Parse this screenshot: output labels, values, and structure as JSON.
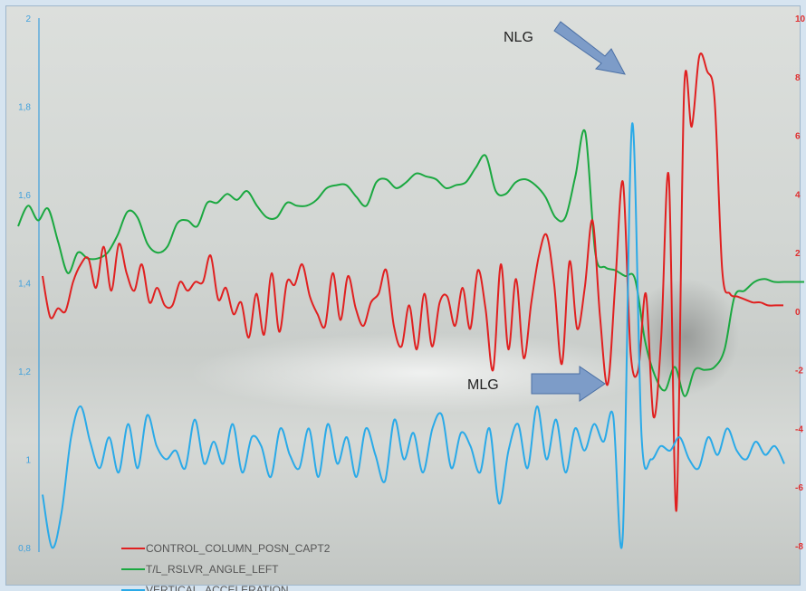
{
  "chart_data": {
    "type": "line",
    "title": "",
    "xlabel": "",
    "grid": false,
    "legend_position": "bottom-left",
    "y_left": {
      "ticks": [
        {
          "value": 2,
          "label": "2"
        },
        {
          "value": 1.8,
          "label": "1,8"
        },
        {
          "value": 1.6,
          "label": "1,6"
        },
        {
          "value": 1.4,
          "label": "1,4"
        },
        {
          "value": 1.2,
          "label": "1,2"
        },
        {
          "value": 1,
          "label": "1"
        },
        {
          "value": 0.8,
          "label": "0,8"
        }
      ],
      "ylim": [
        0.8,
        2
      ],
      "color": "#3fa0dc"
    },
    "y_right": {
      "ticks": [
        {
          "value": 10,
          "label": "10"
        },
        {
          "value": 8,
          "label": "8"
        },
        {
          "value": 6,
          "label": "6"
        },
        {
          "value": 4,
          "label": "4"
        },
        {
          "value": 2,
          "label": "2"
        },
        {
          "value": 0,
          "label": "0"
        },
        {
          "value": -2,
          "label": "-2"
        },
        {
          "value": -4,
          "label": "-4"
        },
        {
          "value": -6,
          "label": "-6"
        },
        {
          "value": -8,
          "label": "-8"
        }
      ],
      "ylim": [
        -8,
        10
      ],
      "color": "#e03030"
    },
    "series": [
      {
        "name": "CONTROL_COLUMN_POSN_CAPT2",
        "color": "#e02020",
        "axis": "right",
        "points": [
          [
            0,
            1.2
          ],
          [
            1,
            -0.2
          ],
          [
            2,
            0.1
          ],
          [
            3,
            0
          ],
          [
            4,
            1
          ],
          [
            5,
            1.6
          ],
          [
            6,
            1.8
          ],
          [
            7,
            0.8
          ],
          [
            8,
            2.2
          ],
          [
            9,
            0.7
          ],
          [
            10,
            2.3
          ],
          [
            11,
            1.3
          ],
          [
            12,
            0.7
          ],
          [
            13,
            1.6
          ],
          [
            14,
            0.3
          ],
          [
            15,
            0.8
          ],
          [
            16,
            0.2
          ],
          [
            17,
            0.2
          ],
          [
            18,
            1
          ],
          [
            19,
            0.7
          ],
          [
            20,
            1
          ],
          [
            21,
            1
          ],
          [
            22,
            1.9
          ],
          [
            23,
            0.4
          ],
          [
            24,
            0.8
          ],
          [
            25,
            -0.1
          ],
          [
            26,
            0.3
          ],
          [
            27,
            -0.9
          ],
          [
            28,
            0.6
          ],
          [
            29,
            -0.8
          ],
          [
            30,
            1.3
          ],
          [
            31,
            -0.7
          ],
          [
            32,
            1
          ],
          [
            33,
            0.9
          ],
          [
            34,
            1.6
          ],
          [
            35,
            0.5
          ],
          [
            36,
            -0.1
          ],
          [
            37,
            -0.5
          ],
          [
            38,
            1.3
          ],
          [
            39,
            -0.3
          ],
          [
            40,
            1.2
          ],
          [
            41,
            0.1
          ],
          [
            42,
            -0.5
          ],
          [
            43,
            0.3
          ],
          [
            44,
            0.6
          ],
          [
            45,
            1.4
          ],
          [
            46,
            -0.5
          ],
          [
            47,
            -1.2
          ],
          [
            48,
            0.2
          ],
          [
            49,
            -1.3
          ],
          [
            50,
            0.6
          ],
          [
            51,
            -1.2
          ],
          [
            52,
            0.3
          ],
          [
            53,
            0.5
          ],
          [
            54,
            -0.5
          ],
          [
            55,
            0.8
          ],
          [
            56,
            -0.6
          ],
          [
            57,
            1.4
          ],
          [
            58,
            0.1
          ],
          [
            59,
            -2
          ],
          [
            60,
            1.6
          ],
          [
            61,
            -1.3
          ],
          [
            62,
            1.1
          ],
          [
            63,
            -1.6
          ],
          [
            64,
            0.3
          ],
          [
            65,
            1.9
          ],
          [
            66,
            2.6
          ],
          [
            67,
            0.9
          ],
          [
            68,
            -1.8
          ],
          [
            69,
            1.7
          ],
          [
            70,
            -0.6
          ],
          [
            71,
            0.8
          ],
          [
            72,
            3.1
          ],
          [
            73,
            -0.2
          ],
          [
            74,
            -2.5
          ],
          [
            75,
            1
          ],
          [
            76,
            4.4
          ],
          [
            77,
            -1.4
          ],
          [
            78,
            -2
          ],
          [
            79,
            0.6
          ],
          [
            80,
            -3.6
          ],
          [
            81,
            -0.9
          ],
          [
            82,
            4.6
          ],
          [
            83,
            -6.8
          ],
          [
            84,
            7.5
          ],
          [
            85,
            6.3
          ],
          [
            86,
            8.7
          ],
          [
            87,
            8.2
          ],
          [
            88,
            7.2
          ],
          [
            89,
            1.4
          ],
          [
            90,
            0.6
          ],
          [
            91,
            0.5
          ],
          [
            92,
            0.4
          ],
          [
            93,
            0.3
          ],
          [
            94,
            0.3
          ],
          [
            95,
            0.2
          ],
          [
            96,
            0.2
          ],
          [
            97,
            0.2
          ]
        ]
      },
      {
        "name": "T/L_RSLVR_ANGLE_LEFT",
        "color": "#1aa840",
        "axis": "right",
        "points": [
          [
            0,
            2.9
          ],
          [
            1,
            3.6
          ],
          [
            2,
            3.1
          ],
          [
            3,
            3.5
          ],
          [
            4,
            2.4
          ],
          [
            5,
            1.3
          ],
          [
            6,
            2
          ],
          [
            7,
            1.8
          ],
          [
            8,
            1.8
          ],
          [
            9,
            2
          ],
          [
            10,
            2.6
          ],
          [
            11,
            3.4
          ],
          [
            12,
            3.2
          ],
          [
            13,
            2.3
          ],
          [
            14,
            2
          ],
          [
            15,
            2.2
          ],
          [
            16,
            3
          ],
          [
            17,
            3.1
          ],
          [
            18,
            2.9
          ],
          [
            19,
            3.7
          ],
          [
            20,
            3.7
          ],
          [
            21,
            4
          ],
          [
            22,
            3.8
          ],
          [
            23,
            4.1
          ],
          [
            24,
            3.6
          ],
          [
            25,
            3.2
          ],
          [
            26,
            3.2
          ],
          [
            27,
            3.7
          ],
          [
            28,
            3.6
          ],
          [
            29,
            3.6
          ],
          [
            30,
            3.8
          ],
          [
            31,
            4.2
          ],
          [
            32,
            4.3
          ],
          [
            33,
            4.3
          ],
          [
            34,
            3.9
          ],
          [
            35,
            3.6
          ],
          [
            36,
            4.4
          ],
          [
            37,
            4.5
          ],
          [
            38,
            4.2
          ],
          [
            39,
            4.4
          ],
          [
            40,
            4.7
          ],
          [
            41,
            4.6
          ],
          [
            42,
            4.5
          ],
          [
            43,
            4.2
          ],
          [
            44,
            4.3
          ],
          [
            45,
            4.4
          ],
          [
            46,
            4.9
          ],
          [
            47,
            5.3
          ],
          [
            48,
            4.1
          ],
          [
            49,
            4
          ],
          [
            50,
            4.4
          ],
          [
            51,
            4.5
          ],
          [
            52,
            4.3
          ],
          [
            53,
            3.9
          ],
          [
            54,
            3.2
          ],
          [
            55,
            3.2
          ],
          [
            56,
            4.6
          ],
          [
            57,
            6.1
          ],
          [
            58,
            2
          ],
          [
            59,
            1.5
          ],
          [
            60,
            1.4
          ],
          [
            61,
            1.2
          ],
          [
            62,
            1.1
          ],
          [
            63,
            -1
          ],
          [
            64,
            -2.2
          ],
          [
            65,
            -2.7
          ],
          [
            66,
            -1.9
          ],
          [
            67,
            -2.9
          ],
          [
            68,
            -2
          ],
          [
            69,
            -2
          ],
          [
            70,
            -1.9
          ],
          [
            71,
            -1.3
          ],
          [
            72,
            0.5
          ],
          [
            73,
            0.7
          ],
          [
            74,
            1
          ],
          [
            75,
            1.1
          ],
          [
            76,
            1
          ],
          [
            77,
            1
          ],
          [
            78,
            1
          ],
          [
            79,
            1
          ]
        ]
      },
      {
        "name": "VERTICAL_ACCELERATION",
        "color": "#2aaae8",
        "axis": "left",
        "points": [
          [
            0,
            0.92
          ],
          [
            1,
            0.8
          ],
          [
            2,
            0.88
          ],
          [
            3,
            1.05
          ],
          [
            4,
            1.12
          ],
          [
            5,
            1.04
          ],
          [
            6,
            0.98
          ],
          [
            7,
            1.05
          ],
          [
            8,
            0.97
          ],
          [
            9,
            1.08
          ],
          [
            10,
            0.98
          ],
          [
            11,
            1.1
          ],
          [
            12,
            1.03
          ],
          [
            13,
            1
          ],
          [
            14,
            1.02
          ],
          [
            15,
            0.98
          ],
          [
            16,
            1.09
          ],
          [
            17,
            0.99
          ],
          [
            18,
            1.04
          ],
          [
            19,
            0.99
          ],
          [
            20,
            1.08
          ],
          [
            21,
            0.97
          ],
          [
            22,
            1.05
          ],
          [
            23,
            1.03
          ],
          [
            24,
            0.96
          ],
          [
            25,
            1.07
          ],
          [
            26,
            1.01
          ],
          [
            27,
            0.98
          ],
          [
            28,
            1.07
          ],
          [
            29,
            0.96
          ],
          [
            30,
            1.08
          ],
          [
            31,
            0.99
          ],
          [
            32,
            1.05
          ],
          [
            33,
            0.96
          ],
          [
            34,
            1.07
          ],
          [
            35,
            1.01
          ],
          [
            36,
            0.95
          ],
          [
            37,
            1.09
          ],
          [
            38,
            1
          ],
          [
            39,
            1.06
          ],
          [
            40,
            0.97
          ],
          [
            41,
            1.07
          ],
          [
            42,
            1.1
          ],
          [
            43,
            0.98
          ],
          [
            44,
            1.06
          ],
          [
            45,
            1.03
          ],
          [
            46,
            0.97
          ],
          [
            47,
            1.07
          ],
          [
            48,
            0.9
          ],
          [
            49,
            1.02
          ],
          [
            50,
            1.08
          ],
          [
            51,
            0.98
          ],
          [
            52,
            1.12
          ],
          [
            53,
            1
          ],
          [
            54,
            1.09
          ],
          [
            55,
            0.97
          ],
          [
            56,
            1.07
          ],
          [
            57,
            1.02
          ],
          [
            58,
            1.08
          ],
          [
            59,
            1.04
          ],
          [
            60,
            1.1
          ],
          [
            61,
            0.82
          ],
          [
            62,
            1.76
          ],
          [
            63,
            1.05
          ],
          [
            64,
            1
          ],
          [
            65,
            1.03
          ],
          [
            66,
            1.02
          ],
          [
            67,
            1.05
          ],
          [
            68,
            1
          ],
          [
            69,
            0.98
          ],
          [
            70,
            1.05
          ],
          [
            71,
            1.01
          ],
          [
            72,
            1.07
          ],
          [
            73,
            1.02
          ],
          [
            74,
            1
          ],
          [
            75,
            1.04
          ],
          [
            76,
            1.01
          ],
          [
            77,
            1.03
          ],
          [
            78,
            0.99
          ]
        ]
      }
    ],
    "annotations": [
      {
        "text": "NLG"
      },
      {
        "text": "MLG"
      }
    ]
  }
}
